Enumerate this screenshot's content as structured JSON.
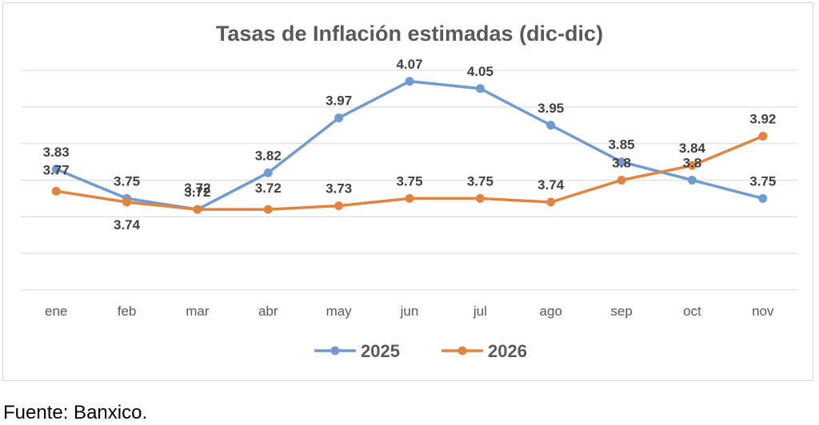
{
  "colors": {
    "series_2025": "#6f9bd1",
    "series_2026": "#e0843f",
    "grid": "#d9d9d9",
    "title": "#595959",
    "tick": "#595959",
    "label": "#404040"
  },
  "source": "Fuente: Banxico.",
  "chart_data": {
    "type": "line",
    "title": "Tasas de Inflación estimadas (dic-dic)",
    "xlabel": "",
    "ylabel": "",
    "categories": [
      "ene",
      "feb",
      "mar",
      "abr",
      "may",
      "jun",
      "jul",
      "ago",
      "sep",
      "oct",
      "nov"
    ],
    "ylim": [
      3.5,
      4.1
    ],
    "grid": true,
    "legend_position": "bottom",
    "series": [
      {
        "name": "2025",
        "values": [
          3.83,
          3.75,
          3.72,
          3.82,
          3.97,
          4.07,
          4.05,
          3.95,
          3.85,
          3.8,
          3.75
        ],
        "labels": [
          "3.83",
          "3.75",
          "3.72",
          "3.82",
          "3.97",
          "4.07",
          "4.05",
          "3.95",
          "3.85",
          "3.8",
          "3.75"
        ]
      },
      {
        "name": "2026",
        "values": [
          3.77,
          3.74,
          3.72,
          3.72,
          3.73,
          3.75,
          3.75,
          3.74,
          3.8,
          3.84,
          3.92
        ],
        "labels": [
          "3.77",
          "3.74",
          "3.72",
          "3.72",
          "3.73",
          "3.75",
          "3.75",
          "3.74",
          "3.8",
          "3.84",
          "3.92"
        ]
      }
    ]
  }
}
